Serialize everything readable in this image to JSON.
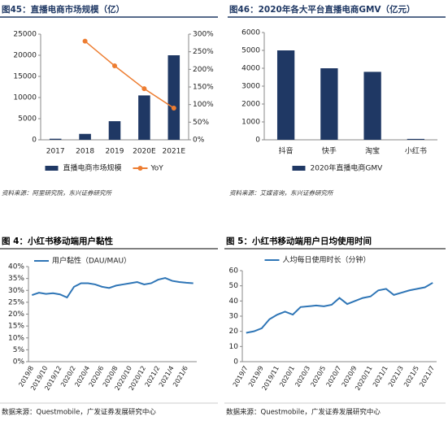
{
  "chart_data": [
    {
      "type": "bar",
      "title": "图45：直播电商市场规模（亿）",
      "source": "资料来源：阿里研究院，东兴证券研究所",
      "categories": [
        "2017",
        "2018",
        "2019",
        "2020E",
        "2021E"
      ],
      "series": [
        {
          "name": "直播电商市场规模",
          "type": "bar",
          "color": "#1f3864",
          "values": [
            250,
            1400,
            4400,
            10500,
            20000
          ]
        },
        {
          "name": "YoY",
          "type": "line",
          "axis": "y2",
          "color": "#ed7d31",
          "values": [
            null,
            280,
            210,
            145,
            90
          ]
        }
      ],
      "ylim": [
        0,
        25000
      ],
      "yticks": [
        0,
        5000,
        10000,
        15000,
        20000,
        25000
      ],
      "y2lim": [
        0,
        300
      ],
      "y2ticks": [
        {
          "value": 0,
          "label": "0%"
        },
        {
          "value": 50,
          "label": "50%"
        },
        {
          "value": 100,
          "label": "100%"
        },
        {
          "value": 150,
          "label": "150%"
        },
        {
          "value": 200,
          "label": "200%"
        },
        {
          "value": 250,
          "label": "250%"
        },
        {
          "value": 300,
          "label": "300%"
        }
      ],
      "grid": false,
      "legend": "bottom"
    },
    {
      "type": "bar",
      "title": "图46：2020年各大平台直播电商GMV（亿元）",
      "source": "资料来源：艾媒咨询，东兴证券研究所",
      "categories": [
        "抖音",
        "快手",
        "淘宝",
        "小红书"
      ],
      "series": [
        {
          "name": "2020年直播电商GMV",
          "type": "bar",
          "color": "#1f3864",
          "values": [
            5000,
            4000,
            3800,
            50
          ]
        }
      ],
      "ylim": [
        0,
        6000
      ],
      "yticks": [
        0,
        1000,
        2000,
        3000,
        4000,
        5000,
        6000
      ],
      "grid": false,
      "legend": "bottom"
    },
    {
      "type": "line",
      "title": "图 4：小红书移动端用户黏性",
      "source": "数据来源：Questmobile，广发证券发展研究中心",
      "categories": [
        "2019/8",
        null,
        "2019/10",
        null,
        "2019/12",
        null,
        "2020/2",
        null,
        "2020/4",
        null,
        "2020/6",
        null,
        "2020/8",
        null,
        "2020/10",
        null,
        "2020/12",
        null,
        "2021/2",
        null,
        "2021/4",
        null,
        "2021/6",
        null
      ],
      "series": [
        {
          "name": "用户黏性（DAU/MAU）",
          "type": "line",
          "color": "#2e75b6",
          "values": [
            28,
            29,
            28.5,
            28.8,
            28.3,
            27,
            31.5,
            33,
            33,
            32.5,
            31.5,
            31,
            32,
            32.5,
            33,
            33.5,
            32.5,
            33,
            34.5,
            35.2,
            34,
            33.5,
            33.2,
            33
          ]
        }
      ],
      "ylim": [
        0,
        40
      ],
      "yticks": [
        {
          "value": 0,
          "label": "0%"
        },
        {
          "value": 5,
          "label": "5%"
        },
        {
          "value": 10,
          "label": "10%"
        },
        {
          "value": 15,
          "label": "15%"
        },
        {
          "value": 20,
          "label": "20%"
        },
        {
          "value": 25,
          "label": "25%"
        },
        {
          "value": 30,
          "label": "30%"
        },
        {
          "value": 35,
          "label": "35%"
        },
        {
          "value": 40,
          "label": "40%"
        }
      ],
      "grid": false,
      "legend": "top"
    },
    {
      "type": "line",
      "title": "图 5：小红书移动端用户日均使用时间",
      "source": "数据来源：Questmobile，广发证券发展研究中心",
      "categories": [
        "2019/7",
        null,
        "2019/9",
        null,
        "2019/11",
        null,
        "2020/1",
        null,
        "2020/3",
        null,
        "2020/5",
        null,
        "2020/7",
        null,
        "2020/9",
        null,
        "2020/11",
        null,
        "2021/1",
        null,
        "2021/3",
        null,
        "2021/5",
        null,
        "2021/7"
      ],
      "series": [
        {
          "name": "人均每日使用时长（分钟）",
          "type": "line",
          "color": "#2e75b6",
          "values": [
            19,
            20,
            22,
            28,
            31,
            33,
            31,
            36,
            36.5,
            37,
            36.5,
            37.5,
            42,
            38,
            40,
            42,
            43,
            47,
            48,
            44,
            45.5,
            47,
            48,
            49,
            52
          ]
        }
      ],
      "ylim": [
        0,
        60
      ],
      "yticks": [
        0,
        10,
        20,
        30,
        40,
        50,
        60
      ],
      "grid": false,
      "legend": "top"
    }
  ]
}
